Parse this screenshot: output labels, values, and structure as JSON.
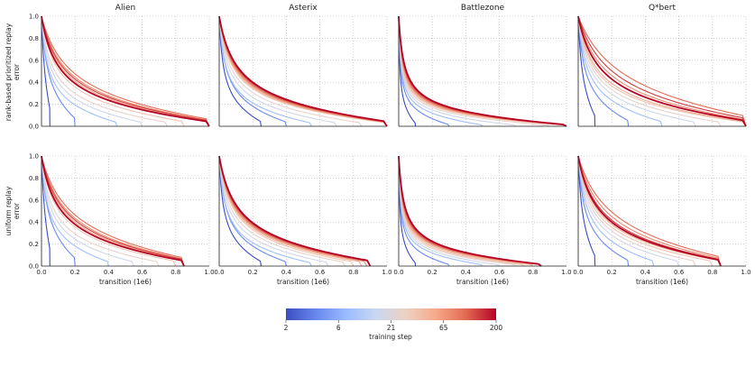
{
  "chart_data": {
    "type": "line",
    "layout": "2 rows x 4 columns small multiples",
    "columns": [
      "Alien",
      "Asterix",
      "Battlezone",
      "Q*bert"
    ],
    "rows": [
      {
        "label_line1": "rank-based prioritized replay",
        "label_line2": "error"
      },
      {
        "label_line1": "uniform replay",
        "label_line2": "error"
      }
    ],
    "xlabel": "transition (1e6)",
    "xlim": [
      0,
      1.0
    ],
    "ylim": [
      0,
      1.0
    ],
    "xticks": [
      "0.0",
      "0.2",
      "0.4",
      "0.6",
      "0.8",
      "1.0"
    ],
    "yticks": [
      "0.0",
      "0.2",
      "0.4",
      "0.6",
      "0.8",
      "1.0"
    ],
    "grid": true,
    "grid_style": "dotted",
    "colorbar": {
      "label": "training step",
      "ticks": [
        "2",
        "6",
        "21",
        "65",
        "200"
      ],
      "colormap": [
        "#3b4cc0",
        "#6788ee",
        "#9abbff",
        "#c9d7f0",
        "#edd1c2",
        "#f7a889",
        "#e26952",
        "#b40426"
      ]
    },
    "series_curves": {
      "description": "each curve is one training step; curve shape y = decay over x, truncated at end-of-buffer x",
      "panels": [
        [
          [
            {
              "end": 0.05,
              "k": 0.02,
              "s": 0.0
            },
            {
              "end": 0.2,
              "k": 0.03,
              "s": 0.15
            },
            {
              "end": 0.45,
              "k": 0.03,
              "s": 0.3
            },
            {
              "end": 0.6,
              "k": 0.04,
              "s": 0.45
            },
            {
              "end": 0.75,
              "k": 0.05,
              "s": 0.55
            },
            {
              "end": 0.85,
              "k": 0.07,
              "s": 0.62
            },
            {
              "end": 1.0,
              "k": 0.09,
              "s": 0.7
            },
            {
              "end": 1.0,
              "k": 0.11,
              "s": 0.78
            },
            {
              "end": 1.0,
              "k": 0.13,
              "s": 0.85
            },
            {
              "end": 1.0,
              "k": 0.1,
              "s": 0.92
            },
            {
              "end": 1.0,
              "k": 0.08,
              "s": 1.0
            }
          ],
          [
            {
              "end": 0.25,
              "k": 0.02,
              "s": 0.0
            },
            {
              "end": 0.4,
              "k": 0.03,
              "s": 0.15
            },
            {
              "end": 0.55,
              "k": 0.03,
              "s": 0.3
            },
            {
              "end": 0.7,
              "k": 0.04,
              "s": 0.45
            },
            {
              "end": 0.85,
              "k": 0.05,
              "s": 0.55
            },
            {
              "end": 1.0,
              "k": 0.06,
              "s": 0.62
            },
            {
              "end": 1.0,
              "k": 0.065,
              "s": 0.7
            },
            {
              "end": 1.0,
              "k": 0.07,
              "s": 0.78
            },
            {
              "end": 1.0,
              "k": 0.075,
              "s": 0.85
            },
            {
              "end": 1.0,
              "k": 0.08,
              "s": 0.92
            },
            {
              "end": 1.0,
              "k": 0.085,
              "s": 1.0
            }
          ],
          [
            {
              "end": 0.1,
              "k": 0.005,
              "s": 0.0
            },
            {
              "end": 0.3,
              "k": 0.008,
              "s": 0.15
            },
            {
              "end": 0.5,
              "k": 0.01,
              "s": 0.3
            },
            {
              "end": 0.7,
              "k": 0.012,
              "s": 0.45
            },
            {
              "end": 0.9,
              "k": 0.014,
              "s": 0.55
            },
            {
              "end": 1.0,
              "k": 0.016,
              "s": 0.62
            },
            {
              "end": 1.0,
              "k": 0.018,
              "s": 0.7
            },
            {
              "end": 1.0,
              "k": 0.02,
              "s": 0.78
            },
            {
              "end": 1.0,
              "k": 0.022,
              "s": 0.85
            },
            {
              "end": 1.0,
              "k": 0.024,
              "s": 0.92
            },
            {
              "end": 1.0,
              "k": 0.026,
              "s": 1.0
            }
          ],
          [
            {
              "end": 0.1,
              "k": 0.02,
              "s": 0.0
            },
            {
              "end": 0.3,
              "k": 0.03,
              "s": 0.15
            },
            {
              "end": 0.5,
              "k": 0.04,
              "s": 0.3
            },
            {
              "end": 0.7,
              "k": 0.05,
              "s": 0.45
            },
            {
              "end": 0.85,
              "k": 0.06,
              "s": 0.55
            },
            {
              "end": 1.0,
              "k": 0.07,
              "s": 0.62
            },
            {
              "end": 1.0,
              "k": 0.08,
              "s": 0.7
            },
            {
              "end": 1.0,
              "k": 0.12,
              "s": 0.78
            },
            {
              "end": 1.0,
              "k": 0.2,
              "s": 0.85
            },
            {
              "end": 1.0,
              "k": 0.15,
              "s": 0.92
            },
            {
              "end": 1.0,
              "k": 0.1,
              "s": 1.0
            }
          ]
        ],
        [
          [
            {
              "end": 0.05,
              "k": 0.02,
              "s": 0.0
            },
            {
              "end": 0.2,
              "k": 0.03,
              "s": 0.15
            },
            {
              "end": 0.4,
              "k": 0.03,
              "s": 0.3
            },
            {
              "end": 0.55,
              "k": 0.04,
              "s": 0.45
            },
            {
              "end": 0.7,
              "k": 0.05,
              "s": 0.55
            },
            {
              "end": 0.8,
              "k": 0.07,
              "s": 0.62
            },
            {
              "end": 0.85,
              "k": 0.09,
              "s": 0.7
            },
            {
              "end": 0.85,
              "k": 0.11,
              "s": 0.78
            },
            {
              "end": 0.85,
              "k": 0.13,
              "s": 0.85
            },
            {
              "end": 0.85,
              "k": 0.1,
              "s": 0.92
            },
            {
              "end": 0.85,
              "k": 0.08,
              "s": 1.0
            }
          ],
          [
            {
              "end": 0.25,
              "k": 0.02,
              "s": 0.0
            },
            {
              "end": 0.4,
              "k": 0.03,
              "s": 0.15
            },
            {
              "end": 0.55,
              "k": 0.03,
              "s": 0.3
            },
            {
              "end": 0.65,
              "k": 0.04,
              "s": 0.45
            },
            {
              "end": 0.75,
              "k": 0.05,
              "s": 0.55
            },
            {
              "end": 0.8,
              "k": 0.06,
              "s": 0.62
            },
            {
              "end": 0.85,
              "k": 0.065,
              "s": 0.7
            },
            {
              "end": 0.88,
              "k": 0.07,
              "s": 0.78
            },
            {
              "end": 0.9,
              "k": 0.075,
              "s": 0.85
            },
            {
              "end": 0.9,
              "k": 0.08,
              "s": 0.92
            },
            {
              "end": 0.9,
              "k": 0.085,
              "s": 1.0
            }
          ],
          [
            {
              "end": 0.1,
              "k": 0.005,
              "s": 0.0
            },
            {
              "end": 0.3,
              "k": 0.008,
              "s": 0.15
            },
            {
              "end": 0.5,
              "k": 0.01,
              "s": 0.3
            },
            {
              "end": 0.6,
              "k": 0.012,
              "s": 0.45
            },
            {
              "end": 0.7,
              "k": 0.014,
              "s": 0.55
            },
            {
              "end": 0.75,
              "k": 0.016,
              "s": 0.62
            },
            {
              "end": 0.8,
              "k": 0.018,
              "s": 0.7
            },
            {
              "end": 0.85,
              "k": 0.02,
              "s": 0.78
            },
            {
              "end": 0.85,
              "k": 0.022,
              "s": 0.85
            },
            {
              "end": 0.85,
              "k": 0.024,
              "s": 0.92
            },
            {
              "end": 0.85,
              "k": 0.026,
              "s": 1.0
            }
          ],
          [
            {
              "end": 0.1,
              "k": 0.02,
              "s": 0.0
            },
            {
              "end": 0.3,
              "k": 0.03,
              "s": 0.15
            },
            {
              "end": 0.45,
              "k": 0.04,
              "s": 0.3
            },
            {
              "end": 0.6,
              "k": 0.05,
              "s": 0.45
            },
            {
              "end": 0.7,
              "k": 0.06,
              "s": 0.55
            },
            {
              "end": 0.8,
              "k": 0.07,
              "s": 0.62
            },
            {
              "end": 0.85,
              "k": 0.08,
              "s": 0.7
            },
            {
              "end": 0.85,
              "k": 0.12,
              "s": 0.78
            },
            {
              "end": 0.85,
              "k": 0.15,
              "s": 0.85
            },
            {
              "end": 0.85,
              "k": 0.1,
              "s": 0.92
            },
            {
              "end": 0.85,
              "k": 0.09,
              "s": 1.0
            }
          ]
        ]
      ]
    }
  }
}
